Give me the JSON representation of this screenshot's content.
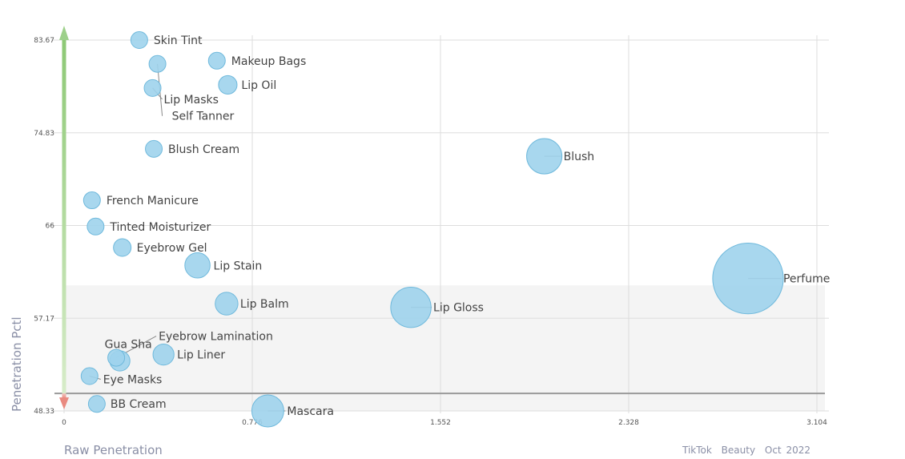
{
  "chart_data": {
    "type": "scatter",
    "bubble": true,
    "xlabel": "Raw Penetration",
    "ylabel": "Penetration Pctl",
    "xlim": [
      0,
      3.104
    ],
    "ylim": [
      48.33,
      83.67
    ],
    "x_ticks": [
      "0",
      "0.776",
      "1.552",
      "2.328",
      "3.104"
    ],
    "y_ticks": [
      "48.33",
      "57.17",
      "66",
      "74.83",
      "83.67"
    ],
    "grid": true,
    "shaded_band": [
      48.33,
      60.3
    ],
    "threshold_line": 50,
    "bubble_color": "#9fd3ec",
    "bubble_stroke": "#6fb9dc",
    "up_arrow_color": "#9dd08a",
    "down_arrow_color": "#e98a80",
    "points": [
      {
        "label": "Skin Tint",
        "x": 0.31,
        "y": 83.67,
        "size": 1
      },
      {
        "label": "Makeup Bags",
        "x": 0.63,
        "y": 81.7,
        "size": 1
      },
      {
        "label": "",
        "x": 0.385,
        "y": 81.4,
        "size": 1
      },
      {
        "label": "Lip Oil",
        "x": 0.675,
        "y": 79.4,
        "size": 1.1
      },
      {
        "label": "Lip Masks",
        "x": 0.365,
        "y": 79.1,
        "size": 1
      },
      {
        "label": "Self Tanner",
        "x": 0.385,
        "y": 81.4,
        "size": 1
      },
      {
        "label": "Blush Cream",
        "x": 0.37,
        "y": 73.3,
        "size": 1
      },
      {
        "label": "Blush",
        "x": 1.98,
        "y": 72.6,
        "size": 2.1
      },
      {
        "label": "French Manicure",
        "x": 0.115,
        "y": 68.4,
        "size": 1
      },
      {
        "label": "Tinted Moisturizer",
        "x": 0.13,
        "y": 65.9,
        "size": 1
      },
      {
        "label": "Eyebrow Gel",
        "x": 0.24,
        "y": 63.9,
        "size": 1.05
      },
      {
        "label": "Lip Stain",
        "x": 0.55,
        "y": 62.2,
        "size": 1.5
      },
      {
        "label": "Perfume",
        "x": 2.82,
        "y": 60.95,
        "size": 4.2
      },
      {
        "label": "Lip Balm",
        "x": 0.67,
        "y": 58.55,
        "size": 1.35
      },
      {
        "label": "Lip Gloss",
        "x": 1.43,
        "y": 58.2,
        "size": 2.4
      },
      {
        "label": "Eyebrow Lamination",
        "x": 0.215,
        "y": 53.4,
        "size": 1
      },
      {
        "label": "Gua Sha",
        "x": 0.23,
        "y": 53.1,
        "size": 1.2
      },
      {
        "label": "Lip Liner",
        "x": 0.41,
        "y": 53.7,
        "size": 1.25
      },
      {
        "label": "Eye Masks",
        "x": 0.105,
        "y": 51.65,
        "size": 1
      },
      {
        "label": "BB Cream",
        "x": 0.135,
        "y": 49.0,
        "size": 1
      },
      {
        "label": "Mascara",
        "x": 0.84,
        "y": 48.33,
        "size": 1.9
      }
    ]
  },
  "footer": {
    "platform": "TikTok",
    "category": "Beauty",
    "period": "Oct 2022"
  }
}
